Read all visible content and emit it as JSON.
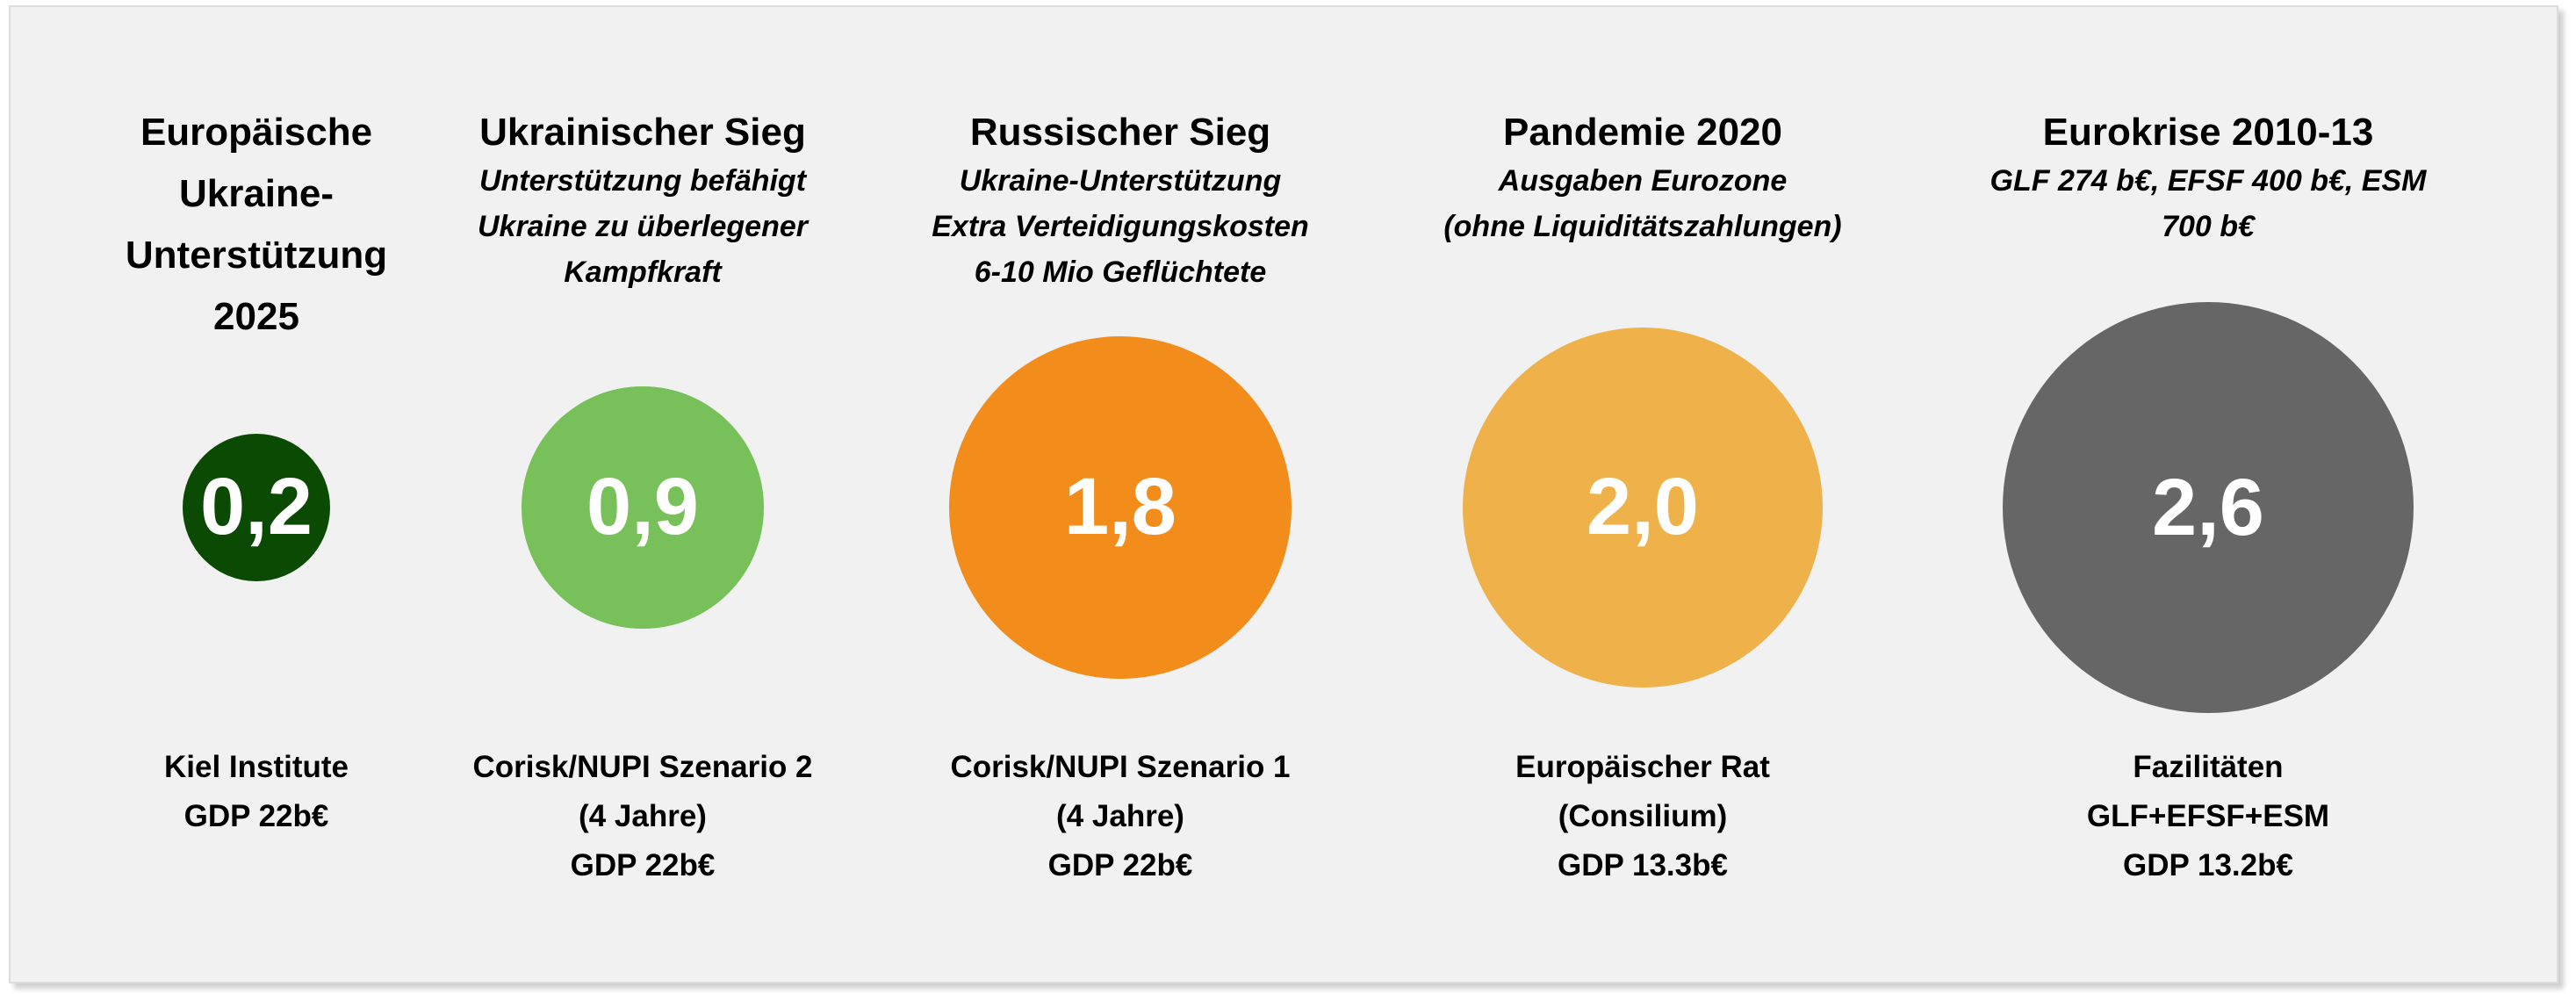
{
  "chart_data": {
    "type": "bubble",
    "unit": "% GDP",
    "items": [
      {
        "title_lines": [
          "Europäische",
          "Ukraine-",
          "Unterstützung",
          "2025"
        ],
        "subtitle_lines": [],
        "value": 0.2,
        "label": "0,2",
        "color": "#0b4a02",
        "source_lines": [
          "Kiel Institute",
          "GDP 22b€"
        ]
      },
      {
        "title_lines": [
          "Ukrainischer Sieg"
        ],
        "subtitle_lines": [
          "Unterstützung befähigt",
          "Ukraine zu überlegener",
          "Kampfkraft"
        ],
        "value": 0.9,
        "label": "0,9",
        "color": "#78c15a",
        "source_lines": [
          "Corisk/NUPI Szenario 2",
          "(4 Jahre)",
          "GDP 22b€"
        ]
      },
      {
        "title_lines": [
          "Russischer Sieg"
        ],
        "subtitle_lines": [
          "Ukraine-Unterstützung",
          "Extra Verteidigungskosten",
          "6-10 Mio Geflüchtete"
        ],
        "value": 1.8,
        "label": "1,8",
        "color": "#f28c1a",
        "source_lines": [
          "Corisk/NUPI Szenario 1",
          "(4 Jahre)",
          "GDP 22b€"
        ]
      },
      {
        "title_lines": [
          "Pandemie 2020"
        ],
        "subtitle_lines": [
          "Ausgaben Eurozone",
          "(ohne Liquiditätszahlungen)"
        ],
        "value": 2.0,
        "label": "2,0",
        "color": "#efb24b",
        "source_lines": [
          "Europäischer Rat",
          "(Consilium)",
          "GDP 13.3b€"
        ]
      },
      {
        "title_lines": [
          "Eurokrise 2010-13"
        ],
        "subtitle_lines": [
          "GLF 274 b€, EFSF 400 b€, ESM 700 b€"
        ],
        "value": 2.6,
        "label": "2,6",
        "color": "#666666",
        "source_lines": [
          "Fazilitäten",
          "GLF+EFSF+ESM",
          "GDP 13.2b€"
        ]
      }
    ]
  }
}
